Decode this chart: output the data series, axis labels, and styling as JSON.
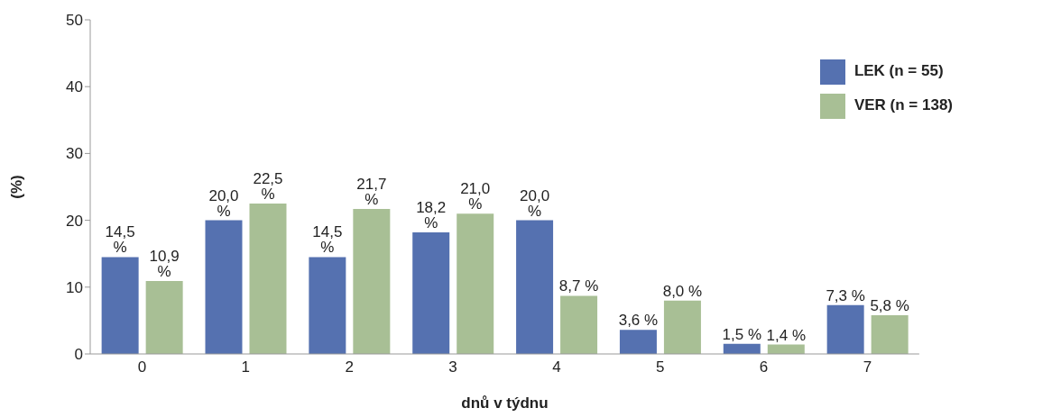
{
  "chart_data": {
    "type": "bar",
    "xlabel": "dnů v týdnu",
    "ylabel": "(%)",
    "categories": [
      "0",
      "1",
      "2",
      "3",
      "4",
      "5",
      "6",
      "7"
    ],
    "series": [
      {
        "name": "LEK (n = 55)",
        "color": "#5571b0",
        "values": [
          14.5,
          20.0,
          14.5,
          18.2,
          20.0,
          3.6,
          1.5,
          7.3
        ],
        "value_labels": [
          "14,5 %",
          "20,0 %",
          "14,5 %",
          "18,2 %",
          "20,0 %",
          "3,6 %",
          "1,5 %",
          "7,3 %"
        ]
      },
      {
        "name": "VER (n = 138)",
        "color": "#a8bf95",
        "values": [
          10.9,
          22.5,
          21.7,
          21.0,
          8.7,
          8.0,
          1.4,
          5.8
        ],
        "value_labels": [
          "10,9 %",
          "22,5 %",
          "21,7 %",
          "21,0 %",
          "8,7 %",
          "8,0 %",
          "1,4 %",
          "5,8 %"
        ]
      }
    ],
    "ylim": [
      0,
      50
    ],
    "yticks": [
      0,
      10,
      20,
      30,
      40,
      50
    ],
    "grid": false,
    "legend": "top right"
  }
}
